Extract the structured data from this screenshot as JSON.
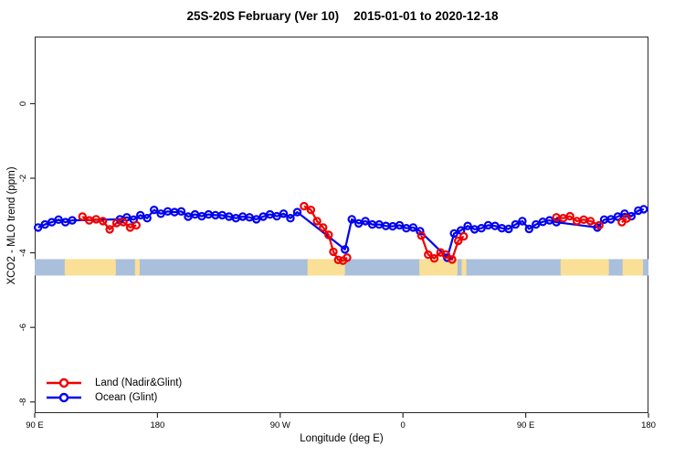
{
  "header": {
    "title": "25S-20S February (Ver 10)",
    "date_range": "2015-01-01 to 2020-12-18"
  },
  "chart_data": {
    "type": "line",
    "title": "25S-20S February (Ver 10)  2015-01-01 to 2020-12-18",
    "xlabel": "Longitude (deg E)",
    "ylabel": "XCO2 - MLO trend (ppm)",
    "marker": "open-circle",
    "grid": false,
    "x_axis": {
      "range": [
        90,
        540
      ],
      "ticks": [
        {
          "value": 90,
          "label": "90 E"
        },
        {
          "value": 180,
          "label": "180"
        },
        {
          "value": 270,
          "label": "90 W"
        },
        {
          "value": 360,
          "label": "0"
        },
        {
          "value": 450,
          "label": "90 E"
        },
        {
          "value": 540,
          "label": "180"
        }
      ]
    },
    "y_axis": {
      "range": [
        -8.3,
        1.8
      ],
      "ticks": [
        {
          "value": 0,
          "label": "0"
        },
        {
          "value": -2,
          "label": "-2"
        },
        {
          "value": -4,
          "label": "-4"
        },
        {
          "value": -6,
          "label": "-6"
        },
        {
          "value": -8,
          "label": "-8"
        }
      ]
    },
    "map_band": {
      "comment": "land/ocean strip along longitude axis",
      "y_top": -4.17,
      "y_bottom": -4.61,
      "ocean_color": "#a9bfdb",
      "land_color": "#fadf96",
      "land_patches": [
        [
          112,
          149.5
        ],
        [
          163.5,
          167
        ],
        [
          290,
          317.5
        ],
        [
          372,
          400
        ],
        [
          403,
          406.5
        ],
        [
          475.5,
          511
        ],
        [
          521,
          536
        ]
      ]
    },
    "series": [
      {
        "name": "Ocean (Glint)",
        "color": "#0000ee",
        "segments": [
          [
            [
              92.5,
              -3.32
            ],
            [
              97.5,
              -3.24
            ],
            [
              102.5,
              -3.18
            ],
            [
              107.5,
              -3.11
            ],
            [
              112.5,
              -3.18
            ],
            [
              117.5,
              -3.13
            ],
            [
              152.5,
              -3.1
            ],
            [
              157.5,
              -3.05
            ],
            [
              162.5,
              -3.11
            ],
            [
              167.5,
              -2.99
            ],
            [
              172.5,
              -3.07
            ],
            [
              177.5,
              -2.85
            ],
            [
              182.5,
              -2.95
            ],
            [
              187.5,
              -2.89
            ],
            [
              192.5,
              -2.91
            ],
            [
              197.5,
              -2.89
            ],
            [
              202.5,
              -3.03
            ],
            [
              207.5,
              -2.97
            ],
            [
              212.5,
              -3.02
            ],
            [
              217.5,
              -2.97
            ],
            [
              222.5,
              -2.99
            ],
            [
              227.5,
              -2.99
            ],
            [
              232.5,
              -3.03
            ],
            [
              237.5,
              -3.07
            ],
            [
              242.5,
              -3.03
            ],
            [
              247.5,
              -3.05
            ],
            [
              252.5,
              -3.1
            ],
            [
              257.5,
              -3.03
            ],
            [
              262.5,
              -2.97
            ],
            [
              267.5,
              -3.02
            ],
            [
              272.5,
              -2.95
            ],
            [
              277.5,
              -3.07
            ],
            [
              282.5,
              -2.91
            ],
            [
              317.5,
              -3.91
            ],
            [
              322.5,
              -3.1
            ],
            [
              327.5,
              -3.21
            ],
            [
              332.5,
              -3.15
            ],
            [
              337.5,
              -3.24
            ],
            [
              342.5,
              -3.24
            ],
            [
              347.5,
              -3.28
            ],
            [
              352.5,
              -3.29
            ],
            [
              357.5,
              -3.26
            ],
            [
              362.5,
              -3.34
            ],
            [
              367.5,
              -3.32
            ],
            [
              372.5,
              -3.42
            ],
            [
              392.5,
              -4.13
            ],
            [
              397.5,
              -3.48
            ],
            [
              402.5,
              -3.4
            ],
            [
              407.5,
              -3.28
            ],
            [
              412.5,
              -3.37
            ],
            [
              417.5,
              -3.34
            ],
            [
              422.5,
              -3.26
            ],
            [
              427.5,
              -3.28
            ],
            [
              432.5,
              -3.34
            ],
            [
              437.5,
              -3.36
            ],
            [
              442.5,
              -3.24
            ],
            [
              447.5,
              -3.15
            ],
            [
              452.5,
              -3.36
            ],
            [
              457.5,
              -3.24
            ],
            [
              462.5,
              -3.17
            ],
            [
              467.5,
              -3.13
            ],
            [
              472.5,
              -3.18
            ],
            [
              502.5,
              -3.32
            ],
            [
              507.5,
              -3.11
            ],
            [
              512.5,
              -3.1
            ],
            [
              517.5,
              -3.03
            ],
            [
              522.5,
              -2.95
            ],
            [
              527.5,
              -3.02
            ],
            [
              532.5,
              -2.87
            ],
            [
              536.5,
              -2.83
            ]
          ]
        ]
      },
      {
        "name": "Land (Nadir&Glint)",
        "color": "#ee0000",
        "segments": [
          [
            [
              125,
              -3.03
            ],
            [
              130,
              -3.13
            ],
            [
              135,
              -3.1
            ],
            [
              140,
              -3.15
            ],
            [
              145,
              -3.37
            ],
            [
              150,
              -3.2
            ],
            [
              155,
              -3.18
            ],
            [
              160,
              -3.32
            ],
            [
              164.5,
              -3.26
            ]
          ],
          [
            [
              287.5,
              -2.75
            ],
            [
              292.5,
              -2.85
            ],
            [
              297,
              -3.15
            ],
            [
              301.5,
              -3.32
            ],
            [
              305.5,
              -3.52
            ],
            [
              309,
              -3.97
            ],
            [
              312.5,
              -4.19
            ],
            [
              316,
              -4.21
            ],
            [
              319,
              -4.13
            ]
          ],
          [
            [
              373.5,
              -3.54
            ],
            [
              378.5,
              -4.05
            ],
            [
              383,
              -4.15
            ],
            [
              387.5,
              -3.99
            ],
            [
              391.5,
              -4.05
            ],
            [
              396,
              -4.18
            ],
            [
              400.5,
              -3.68
            ],
            [
              404.5,
              -3.56
            ]
          ],
          [
            [
              472.5,
              -3.05
            ],
            [
              477.5,
              -3.07
            ],
            [
              482.5,
              -3.02
            ],
            [
              487.5,
              -3.15
            ],
            [
              492.5,
              -3.11
            ],
            [
              497.5,
              -3.15
            ],
            [
              504,
              -3.26
            ]
          ],
          [
            [
              520.5,
              -3.18
            ],
            [
              524,
              -3.08
            ]
          ]
        ]
      }
    ],
    "legend": {
      "position": "bottom-left",
      "entries": [
        {
          "label": "Land (Nadir&Glint)",
          "color": "#ee0000"
        },
        {
          "label": "Ocean (Glint)",
          "color": "#0000ee"
        }
      ]
    }
  }
}
